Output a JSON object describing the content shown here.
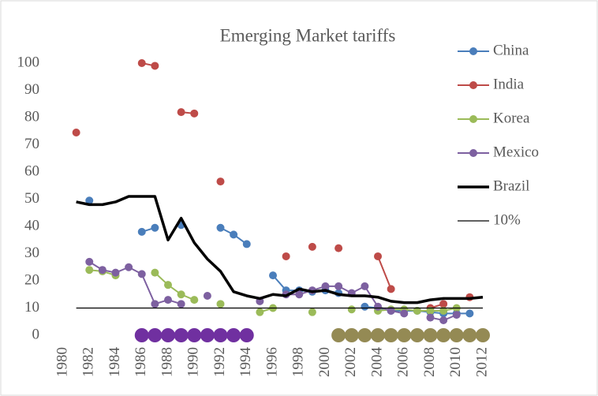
{
  "chart_data": {
    "type": "line",
    "title": "Emerging Market tariffs",
    "x": [
      1981,
      1982,
      1983,
      1984,
      1985,
      1986,
      1987,
      1988,
      1989,
      1990,
      1991,
      1992,
      1993,
      1994,
      1995,
      1996,
      1997,
      1998,
      1999,
      2000,
      2001,
      2002,
      2003,
      2004,
      2005,
      2006,
      2007,
      2008,
      2009,
      2010,
      2011,
      2012
    ],
    "xlim": [
      1980,
      2012
    ],
    "xticks": [
      1980,
      1982,
      1984,
      1986,
      1988,
      1990,
      1992,
      1994,
      1996,
      1998,
      2000,
      2002,
      2004,
      2006,
      2008,
      2010,
      2012
    ],
    "ylim": [
      0,
      100
    ],
    "yticks": [
      0,
      10,
      20,
      30,
      40,
      50,
      60,
      70,
      80,
      90,
      100
    ],
    "legend": "right",
    "series": [
      {
        "name": "China",
        "color": "#4a7ebb",
        "marker": true,
        "line": true,
        "width": 2,
        "values": [
          null,
          49.5,
          null,
          null,
          null,
          38,
          39.5,
          null,
          40.5,
          null,
          null,
          39.5,
          37,
          33.5,
          null,
          22,
          16.5,
          16.5,
          16,
          16.5,
          15.5,
          null,
          10.5,
          10,
          9,
          9,
          9,
          8.5,
          8,
          8,
          8,
          null
        ]
      },
      {
        "name": "India",
        "color": "#be4b48",
        "marker": true,
        "line": true,
        "width": 2,
        "values": [
          74.5,
          null,
          null,
          null,
          null,
          100,
          99,
          null,
          82,
          81.5,
          null,
          56.5,
          null,
          null,
          null,
          null,
          29,
          null,
          32.5,
          null,
          32,
          null,
          null,
          29,
          17,
          null,
          null,
          10,
          11.5,
          null,
          14,
          null
        ]
      },
      {
        "name": "Korea",
        "color": "#9bbb59",
        "marker": true,
        "line": true,
        "width": 2,
        "values": [
          null,
          24,
          23.5,
          22,
          null,
          null,
          23,
          18.5,
          15,
          13,
          null,
          11.5,
          null,
          null,
          8.5,
          10,
          null,
          null,
          8.5,
          null,
          null,
          9.5,
          null,
          9,
          9.5,
          9.5,
          9,
          9,
          9,
          10,
          null,
          null
        ]
      },
      {
        "name": "Mexico",
        "color": "#7d60a0",
        "marker": true,
        "line": true,
        "width": 2,
        "values": [
          null,
          27,
          24,
          23,
          25,
          22.5,
          11.5,
          13,
          11.5,
          null,
          14.5,
          null,
          null,
          null,
          12.5,
          null,
          15,
          15,
          16.5,
          18,
          18,
          15.5,
          18,
          10.5,
          9,
          8,
          null,
          6.5,
          5.5,
          7.5,
          null,
          null
        ]
      },
      {
        "name": "Brazil",
        "color": "#000000",
        "marker": false,
        "line": true,
        "width": 3.5,
        "values": [
          49,
          48,
          48,
          49,
          51,
          51,
          51,
          35,
          43,
          34,
          28,
          23.5,
          16,
          14.5,
          13.5,
          15,
          14.5,
          17,
          16,
          16.5,
          15,
          14.5,
          14.5,
          14,
          12.5,
          12,
          12,
          13,
          13.5,
          13.5,
          13.5,
          14
        ]
      },
      {
        "name": "10%",
        "color": "#000000",
        "marker": false,
        "line": true,
        "width": 1.3,
        "values": [
          10,
          10,
          10,
          10,
          10,
          10,
          10,
          10,
          10,
          10,
          10,
          10,
          10,
          10,
          10,
          10,
          10,
          10,
          10,
          10,
          10,
          10,
          10,
          10,
          10,
          10,
          10,
          10,
          10,
          10,
          10,
          10
        ]
      },
      {
        "color": "#7030a0",
        "marker": true,
        "line": false,
        "size": 9,
        "values": [
          null,
          null,
          null,
          null,
          null,
          0,
          0,
          0,
          0,
          0,
          0,
          0,
          0,
          0,
          null,
          null,
          null,
          null,
          null,
          null,
          null,
          null,
          null,
          null,
          null,
          null,
          null,
          null,
          null,
          null,
          null,
          null
        ]
      },
      {
        "color": "#948a54",
        "marker": true,
        "line": false,
        "size": 9,
        "values": [
          null,
          null,
          null,
          null,
          null,
          null,
          null,
          null,
          null,
          null,
          null,
          null,
          null,
          null,
          null,
          null,
          null,
          null,
          null,
          null,
          0,
          0,
          0,
          0,
          0,
          0,
          0,
          0,
          0,
          0,
          0,
          0
        ]
      }
    ]
  }
}
